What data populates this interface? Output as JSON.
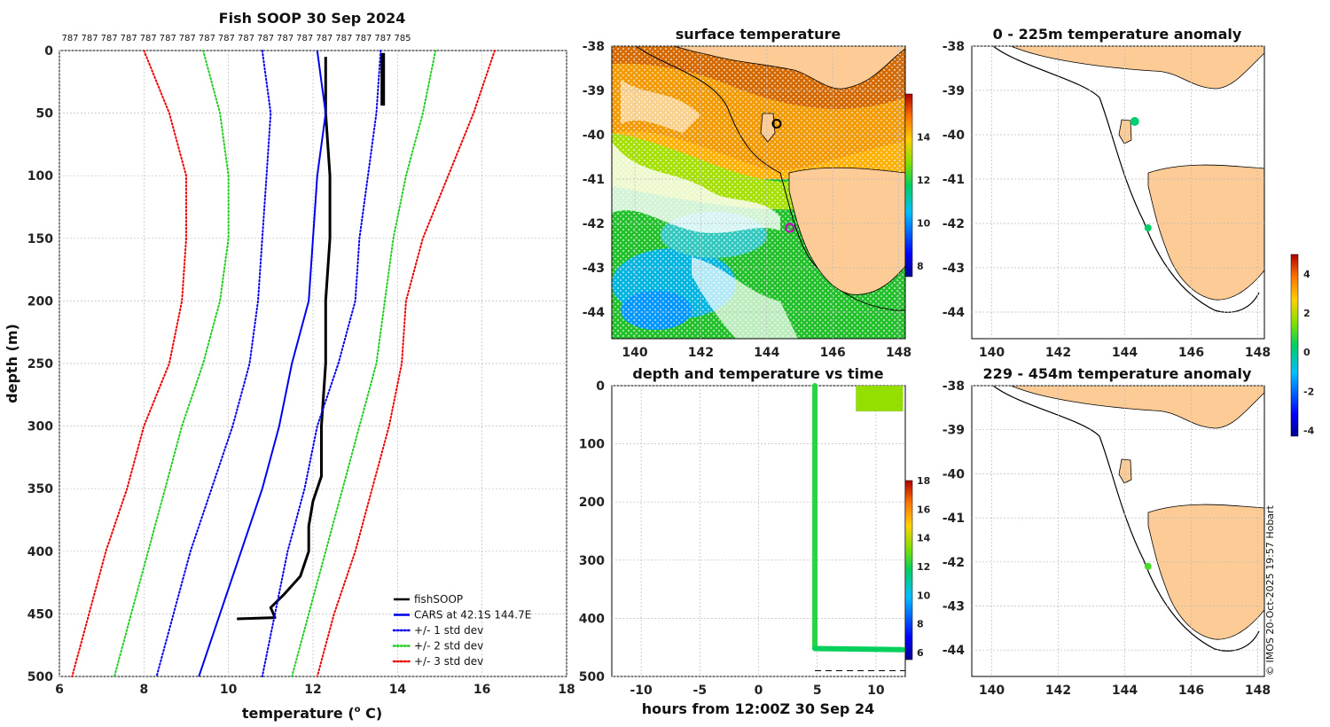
{
  "chart_data": [
    {
      "id": "profile",
      "type": "line",
      "title": "Fish SOOP 30 Sep 2024",
      "xlabel": "temperature (",
      "xlabel_sup": "o",
      "xlabel_tail": " C)",
      "ylabel": "depth (m)",
      "xlim": [
        6,
        18
      ],
      "ylim": [
        0,
        500
      ],
      "xticks": [
        6,
        8,
        10,
        12,
        14,
        16,
        18
      ],
      "yticks": [
        0,
        50,
        100,
        150,
        200,
        250,
        300,
        350,
        400,
        450,
        500
      ],
      "counts": [
        "787",
        "787",
        "787",
        "787",
        "787",
        "787",
        "787",
        "787",
        "787",
        "787",
        "787",
        "787",
        "787",
        "787",
        "787",
        "787",
        "787",
        "785"
      ],
      "series": [
        {
          "name": "fishSOOP",
          "color": "#000000",
          "style": "solid",
          "width": 3,
          "points": [
            [
              12.3,
              5
            ],
            [
              12.3,
              50
            ],
            [
              12.4,
              100
            ],
            [
              12.4,
              150
            ],
            [
              12.3,
              200
            ],
            [
              12.3,
              250
            ],
            [
              12.2,
              300
            ],
            [
              12.2,
              340
            ],
            [
              12.0,
              360
            ],
            [
              11.9,
              380
            ],
            [
              11.9,
              400
            ],
            [
              11.7,
              420
            ],
            [
              11.3,
              435
            ],
            [
              11.0,
              445
            ],
            [
              11.1,
              453
            ],
            [
              10.2,
              454
            ]
          ]
        },
        {
          "name": "fishSOOP-surface",
          "color": "#000000",
          "style": "solid",
          "width": 5,
          "points": [
            [
              13.65,
              2
            ],
            [
              13.65,
              44
            ]
          ]
        },
        {
          "name": "CARS at 42.1S 144.7E",
          "color": "#0000ee",
          "style": "solid",
          "width": 2,
          "points": [
            [
              12.1,
              0
            ],
            [
              12.2,
              25
            ],
            [
              12.3,
              50
            ],
            [
              12.1,
              100
            ],
            [
              12.0,
              150
            ],
            [
              11.9,
              200
            ],
            [
              11.5,
              250
            ],
            [
              11.2,
              300
            ],
            [
              10.8,
              350
            ],
            [
              10.3,
              400
            ],
            [
              9.8,
              450
            ],
            [
              9.3,
              500
            ]
          ]
        },
        {
          "name": "CARS-1neg",
          "color": "#0000ee",
          "style": "dot",
          "width": 2,
          "points": [
            [
              10.8,
              0
            ],
            [
              11.0,
              50
            ],
            [
              10.9,
              100
            ],
            [
              10.8,
              150
            ],
            [
              10.7,
              200
            ],
            [
              10.5,
              250
            ],
            [
              10.1,
              300
            ],
            [
              9.6,
              350
            ],
            [
              9.1,
              400
            ],
            [
              8.7,
              450
            ],
            [
              8.3,
              500
            ]
          ]
        },
        {
          "name": "CARS-1pos",
          "color": "#0000ee",
          "style": "dot",
          "width": 2,
          "points": [
            [
              13.6,
              0
            ],
            [
              13.5,
              50
            ],
            [
              13.3,
              100
            ],
            [
              13.1,
              150
            ],
            [
              13.0,
              200
            ],
            [
              12.6,
              250
            ],
            [
              12.1,
              300
            ],
            [
              11.8,
              350
            ],
            [
              11.4,
              400
            ],
            [
              11.1,
              450
            ],
            [
              10.8,
              500
            ]
          ]
        },
        {
          "name": "CARS-2neg",
          "color": "#22cc22",
          "style": "dot",
          "width": 2,
          "points": [
            [
              9.4,
              0
            ],
            [
              9.8,
              50
            ],
            [
              10.0,
              100
            ],
            [
              10.0,
              150
            ],
            [
              9.8,
              200
            ],
            [
              9.4,
              250
            ],
            [
              8.9,
              300
            ],
            [
              8.5,
              350
            ],
            [
              8.1,
              400
            ],
            [
              7.7,
              450
            ],
            [
              7.3,
              500
            ]
          ]
        },
        {
          "name": "CARS-2pos",
          "color": "#22cc22",
          "style": "dot",
          "width": 2,
          "points": [
            [
              14.9,
              0
            ],
            [
              14.6,
              50
            ],
            [
              14.2,
              100
            ],
            [
              13.9,
              150
            ],
            [
              13.7,
              200
            ],
            [
              13.5,
              250
            ],
            [
              13.1,
              300
            ],
            [
              12.7,
              350
            ],
            [
              12.3,
              400
            ],
            [
              11.9,
              450
            ],
            [
              11.5,
              500
            ]
          ]
        },
        {
          "name": "CARS-3neg",
          "color": "#ee0000",
          "style": "dot",
          "width": 2,
          "points": [
            [
              8.0,
              0
            ],
            [
              8.6,
              50
            ],
            [
              9.0,
              100
            ],
            [
              9.0,
              150
            ],
            [
              8.9,
              200
            ],
            [
              8.6,
              250
            ],
            [
              8.0,
              300
            ],
            [
              7.6,
              350
            ],
            [
              7.1,
              400
            ],
            [
              6.7,
              450
            ],
            [
              6.3,
              500
            ]
          ]
        },
        {
          "name": "CARS-3pos",
          "color": "#ee0000",
          "style": "dot",
          "width": 2,
          "points": [
            [
              16.3,
              0
            ],
            [
              15.8,
              50
            ],
            [
              15.2,
              100
            ],
            [
              14.6,
              150
            ],
            [
              14.2,
              200
            ],
            [
              14.1,
              250
            ],
            [
              13.8,
              300
            ],
            [
              13.4,
              350
            ],
            [
              13.0,
              400
            ],
            [
              12.5,
              450
            ],
            [
              12.1,
              500
            ]
          ]
        }
      ],
      "legend": [
        {
          "label": "fishSOOP",
          "color": "#000000",
          "style": "solid"
        },
        {
          "label": "CARS at 42.1S 144.7E",
          "color": "#0000ee",
          "style": "solid"
        },
        {
          "label": "+/- 1 std dev",
          "color": "#0000ee",
          "style": "dot"
        },
        {
          "label": "+/- 2 std dev",
          "color": "#22cc22",
          "style": "dot"
        },
        {
          "label": "+/- 3 std dev",
          "color": "#ee0000",
          "style": "dot"
        }
      ]
    },
    {
      "id": "sst_map",
      "type": "heatmap",
      "title": "surface temperature",
      "xlim": [
        139.3,
        148.2
      ],
      "ylim": [
        -44.6,
        -38
      ],
      "xticks": [
        140,
        142,
        144,
        146,
        148
      ],
      "yticks": [
        -38,
        -39,
        -40,
        -41,
        -42,
        -43,
        -44
      ],
      "colorbar": {
        "min": 7.5,
        "max": 16,
        "ticks": [
          8,
          10,
          12,
          14
        ]
      },
      "markers": [
        {
          "lon": 144.3,
          "lat": -39.75,
          "type": "ring",
          "color": "#000000"
        },
        {
          "lon": 144.7,
          "lat": -42.1,
          "type": "ring",
          "color": "#cc00cc"
        }
      ]
    },
    {
      "id": "time_depth",
      "type": "scatter",
      "title": "depth and temperature vs time",
      "xlabel": "hours from 12:00Z 30 Sep 24",
      "xlim": [
        -12.5,
        12.5
      ],
      "ylim": [
        0,
        500
      ],
      "xticks": [
        -10,
        -5,
        0,
        5,
        10
      ],
      "yticks": [
        0,
        100,
        200,
        300,
        400,
        500
      ],
      "colorbar": {
        "min": 5.5,
        "max": 18,
        "ticks": [
          6,
          8,
          10,
          12,
          14,
          16,
          18
        ]
      },
      "segments": [
        {
          "x": [
            4.8,
            4.8
          ],
          "y": [
            0,
            452
          ],
          "temp": 12.2
        },
        {
          "x": [
            4.8,
            12.3
          ],
          "y": [
            452,
            454
          ],
          "temp": 11.8
        },
        {
          "x": [
            8.3,
            12.3
          ],
          "y": [
            0,
            44
          ],
          "temp": 13.5,
          "band": true
        }
      ],
      "dashed_line": {
        "x": [
          4.8,
          12.5
        ],
        "y": [
          490,
          490
        ]
      }
    },
    {
      "id": "anom_0_225",
      "type": "heatmap",
      "title": "0 - 225m temperature anomaly",
      "xlim": [
        139.4,
        148.2
      ],
      "ylim": [
        -44.6,
        -38
      ],
      "xticks": [
        140,
        142,
        144,
        146,
        148
      ],
      "yticks": [
        -38,
        -39,
        -40,
        -41,
        -42,
        -43,
        -44
      ],
      "markers": [
        {
          "lon": 144.3,
          "lat": -39.7,
          "anomaly": 0.2,
          "size": 5
        },
        {
          "lon": 144.7,
          "lat": -42.1,
          "anomaly": 0.3,
          "size": 4
        }
      ]
    },
    {
      "id": "anom_229_454",
      "type": "heatmap",
      "title": "229 - 454m temperature anomaly",
      "xlim": [
        139.4,
        148.2
      ],
      "ylim": [
        -44.6,
        -38
      ],
      "xticks": [
        140,
        142,
        144,
        146,
        148
      ],
      "yticks": [
        -38,
        -39,
        -40,
        -41,
        -42,
        -43,
        -44
      ],
      "markers": [
        {
          "lon": 144.7,
          "lat": -42.1,
          "anomaly": 1.0,
          "size": 4
        }
      ],
      "colorbar": {
        "min": -4.3,
        "max": 5,
        "ticks": [
          -4,
          -2,
          0,
          2,
          4
        ]
      }
    }
  ],
  "copyright": "© IMOS 20-Oct-2025 19:57 Hobart",
  "colors": {
    "land": "#fccb96",
    "coast": "#000000",
    "frame": "#000000"
  }
}
